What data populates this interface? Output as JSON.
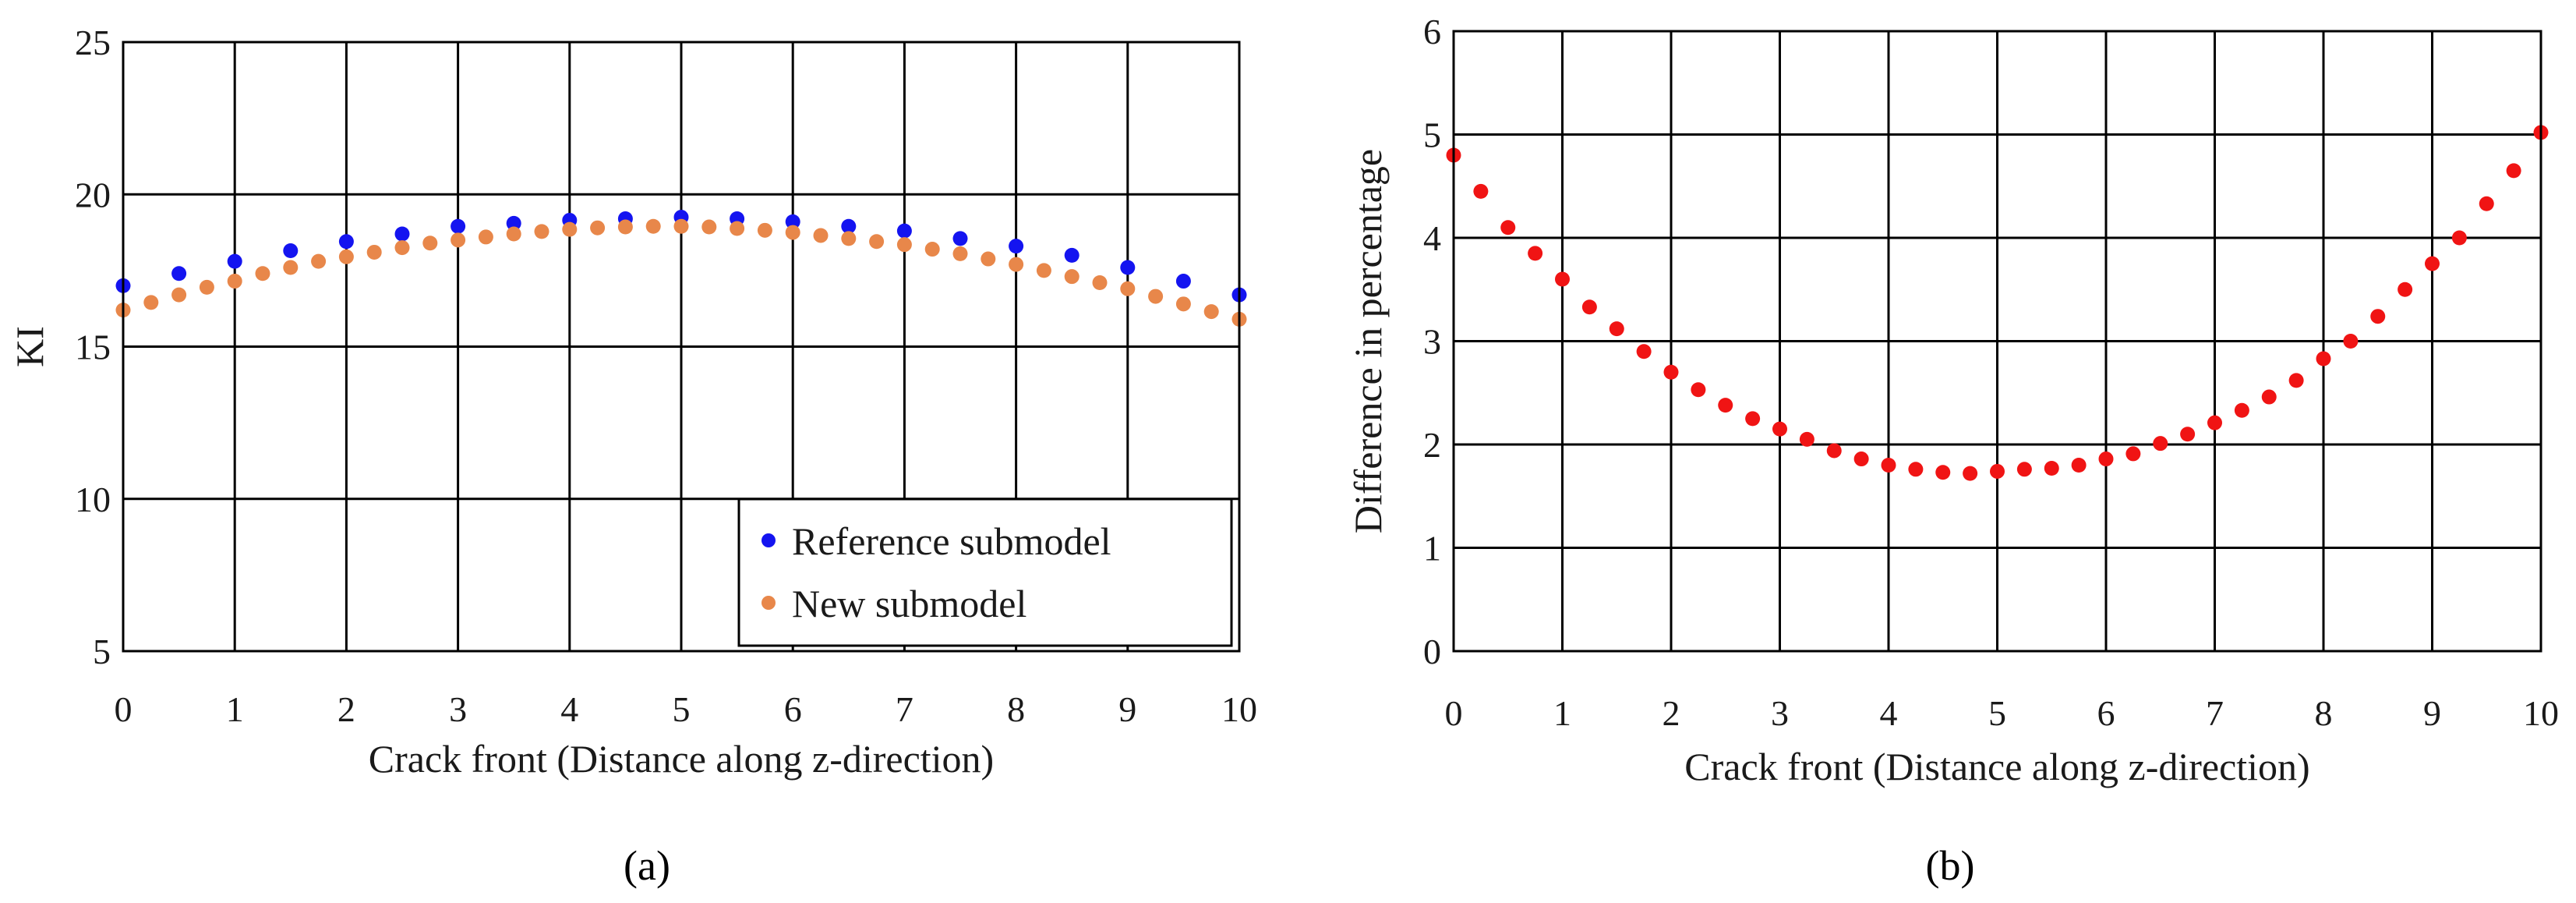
{
  "chart_data": [
    {
      "type": "scatter",
      "panel_label": "(a)",
      "xlabel": "Crack front (Distance along z-direction)",
      "ylabel": "KI",
      "xlim": [
        0,
        10
      ],
      "ylim": [
        5,
        25
      ],
      "xticks": [
        0,
        1,
        2,
        3,
        4,
        5,
        6,
        7,
        8,
        9,
        10
      ],
      "yticks": [
        5,
        10,
        15,
        20,
        25
      ],
      "grid": true,
      "legend_position": "bottom-right",
      "series": [
        {
          "name": "Reference submodel",
          "color": "#1414f0",
          "x": [
            0,
            0.5,
            1,
            1.5,
            2,
            2.5,
            3,
            3.5,
            4,
            4.5,
            5,
            5.5,
            6,
            6.5,
            7,
            7.5,
            8,
            8.5,
            9,
            9.5,
            10
          ],
          "y": [
            17.0,
            17.4,
            17.8,
            18.15,
            18.45,
            18.7,
            18.95,
            19.05,
            19.15,
            19.2,
            19.25,
            19.2,
            19.1,
            18.95,
            18.8,
            18.55,
            18.3,
            18.0,
            17.6,
            17.15,
            16.7
          ]
        },
        {
          "name": "New submodel",
          "color": "#e8874a",
          "x": [
            0,
            0.25,
            0.5,
            0.75,
            1,
            1.25,
            1.5,
            1.75,
            2,
            2.25,
            2.5,
            2.75,
            3,
            3.25,
            3.5,
            3.75,
            4,
            4.25,
            4.5,
            4.75,
            5,
            5.25,
            5.5,
            5.75,
            6,
            6.25,
            6.5,
            6.75,
            7,
            7.25,
            7.5,
            7.75,
            8,
            8.25,
            8.5,
            8.75,
            9,
            9.25,
            9.5,
            9.75,
            10
          ],
          "y": [
            16.2,
            16.45,
            16.7,
            16.95,
            17.15,
            17.4,
            17.6,
            17.8,
            17.95,
            18.1,
            18.25,
            18.4,
            18.5,
            18.6,
            18.7,
            18.78,
            18.85,
            18.9,
            18.93,
            18.95,
            18.95,
            18.93,
            18.88,
            18.82,
            18.75,
            18.65,
            18.55,
            18.45,
            18.35,
            18.2,
            18.05,
            17.88,
            17.7,
            17.5,
            17.3,
            17.1,
            16.9,
            16.65,
            16.4,
            16.15,
            15.9
          ]
        }
      ]
    },
    {
      "type": "scatter",
      "panel_label": "(b)",
      "xlabel": "Crack front (Distance along z-direction)",
      "ylabel": "Difference in percentage",
      "xlim": [
        0,
        10
      ],
      "ylim": [
        0,
        6
      ],
      "xticks": [
        0,
        1,
        2,
        3,
        4,
        5,
        6,
        7,
        8,
        9,
        10
      ],
      "yticks": [
        0,
        1,
        2,
        3,
        4,
        5,
        6
      ],
      "grid": true,
      "series": [
        {
          "name": "Difference",
          "color": "#f01414",
          "x": [
            0,
            0.25,
            0.5,
            0.75,
            1,
            1.25,
            1.5,
            1.75,
            2,
            2.25,
            2.5,
            2.75,
            3,
            3.25,
            3.5,
            3.75,
            4,
            4.25,
            4.5,
            4.75,
            5,
            5.25,
            5.5,
            5.75,
            6,
            6.25,
            6.5,
            6.75,
            7,
            7.25,
            7.5,
            7.75,
            8,
            8.25,
            8.5,
            8.75,
            9,
            9.25,
            9.5,
            9.75,
            10
          ],
          "y": [
            4.8,
            4.45,
            4.1,
            3.85,
            3.6,
            3.33,
            3.12,
            2.9,
            2.7,
            2.53,
            2.38,
            2.25,
            2.15,
            2.05,
            1.94,
            1.86,
            1.8,
            1.76,
            1.73,
            1.72,
            1.74,
            1.76,
            1.77,
            1.8,
            1.86,
            1.91,
            2.01,
            2.1,
            2.21,
            2.33,
            2.46,
            2.62,
            2.83,
            3.0,
            3.24,
            3.5,
            3.75,
            4.0,
            4.33,
            4.65,
            5.02
          ]
        }
      ]
    }
  ]
}
